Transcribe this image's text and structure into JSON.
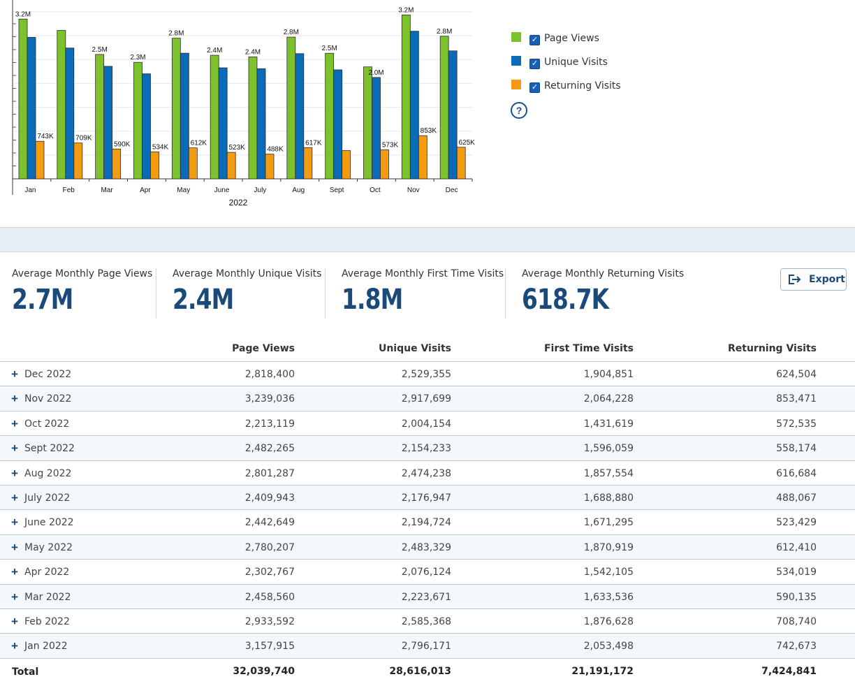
{
  "colors": {
    "page_views": "#7dc22c",
    "unique_visits": "#0a6bb8",
    "returning_visits": "#f39c12",
    "accent": "#1a4a7a"
  },
  "chart_data": {
    "type": "bar",
    "categories": [
      "Jan",
      "Feb",
      "Mar",
      "Apr",
      "May",
      "June",
      "July",
      "Aug",
      "Sept",
      "Oct",
      "Nov",
      "Dec"
    ],
    "xlabel": "2022",
    "ylim": [
      0,
      3300000
    ],
    "series": [
      {
        "name": "Page Views",
        "values": [
          3157915,
          2933592,
          2458560,
          2302767,
          2780207,
          2442649,
          2409943,
          2801287,
          2482265,
          2213119,
          3239036,
          2818400
        ],
        "labels": [
          "3.2M",
          "",
          "2.5M",
          "2.3M",
          "2.8M",
          "2.4M",
          "2.4M",
          "2.8M",
          "2.5M",
          "",
          "3.2M",
          "2.8M"
        ]
      },
      {
        "name": "Unique Visits",
        "values": [
          2796171,
          2585368,
          2223671,
          2076124,
          2483329,
          2194724,
          2176947,
          2474238,
          2154233,
          2004154,
          2917699,
          2529355
        ],
        "labels": [
          "",
          "",
          "",
          "",
          "",
          "",
          "",
          "",
          "",
          "2.0M",
          "",
          ""
        ]
      },
      {
        "name": "Returning Visits",
        "values": [
          742673,
          708740,
          590135,
          534019,
          612410,
          523429,
          488067,
          616684,
          558174,
          572535,
          853471,
          624504
        ],
        "labels": [
          "743K",
          "709K",
          "590K",
          "534K",
          "612K",
          "523K",
          "488K",
          "617K",
          "",
          "573K",
          "853K",
          "625K"
        ]
      }
    ]
  },
  "legend": [
    {
      "label": "Page Views",
      "color": "#7dc22c",
      "checked": true
    },
    {
      "label": "Unique Visits",
      "color": "#0a6bb8",
      "checked": true
    },
    {
      "label": "Returning Visits",
      "color": "#f39c12",
      "checked": true
    }
  ],
  "help_icon": "question-circle-icon",
  "kpis": [
    {
      "label": "Average Monthly Page Views",
      "value": "2.7M"
    },
    {
      "label": "Average Monthly Unique Visits",
      "value": "2.4M"
    },
    {
      "label": "Average Monthly First Time Visits",
      "value": "1.8M"
    },
    {
      "label": "Average Monthly Returning Visits",
      "value": "618.7K"
    }
  ],
  "export": {
    "label": "Export",
    "icon": "export-icon"
  },
  "table": {
    "columns": [
      "Page Views",
      "Unique Visits",
      "First Time Visits",
      "Returning Visits"
    ],
    "rows": [
      {
        "month": "Dec 2022",
        "pv": "2,818,400",
        "uv": "2,529,355",
        "ft": "1,904,851",
        "rv": "624,504"
      },
      {
        "month": "Nov 2022",
        "pv": "3,239,036",
        "uv": "2,917,699",
        "ft": "2,064,228",
        "rv": "853,471"
      },
      {
        "month": "Oct 2022",
        "pv": "2,213,119",
        "uv": "2,004,154",
        "ft": "1,431,619",
        "rv": "572,535"
      },
      {
        "month": "Sept 2022",
        "pv": "2,482,265",
        "uv": "2,154,233",
        "ft": "1,596,059",
        "rv": "558,174"
      },
      {
        "month": "Aug 2022",
        "pv": "2,801,287",
        "uv": "2,474,238",
        "ft": "1,857,554",
        "rv": "616,684"
      },
      {
        "month": "July 2022",
        "pv": "2,409,943",
        "uv": "2,176,947",
        "ft": "1,688,880",
        "rv": "488,067"
      },
      {
        "month": "June 2022",
        "pv": "2,442,649",
        "uv": "2,194,724",
        "ft": "1,671,295",
        "rv": "523,429"
      },
      {
        "month": "May 2022",
        "pv": "2,780,207",
        "uv": "2,483,329",
        "ft": "1,870,919",
        "rv": "612,410"
      },
      {
        "month": "Apr 2022",
        "pv": "2,302,767",
        "uv": "2,076,124",
        "ft": "1,542,105",
        "rv": "534,019"
      },
      {
        "month": "Mar 2022",
        "pv": "2,458,560",
        "uv": "2,223,671",
        "ft": "1,633,536",
        "rv": "590,135"
      },
      {
        "month": "Feb 2022",
        "pv": "2,933,592",
        "uv": "2,585,368",
        "ft": "1,876,628",
        "rv": "708,740"
      },
      {
        "month": "Jan 2022",
        "pv": "3,157,915",
        "uv": "2,796,171",
        "ft": "2,053,498",
        "rv": "742,673"
      }
    ],
    "total": {
      "label": "Total",
      "pv": "32,039,740",
      "uv": "28,616,013",
      "ft": "21,191,172",
      "rv": "7,424,841"
    }
  }
}
